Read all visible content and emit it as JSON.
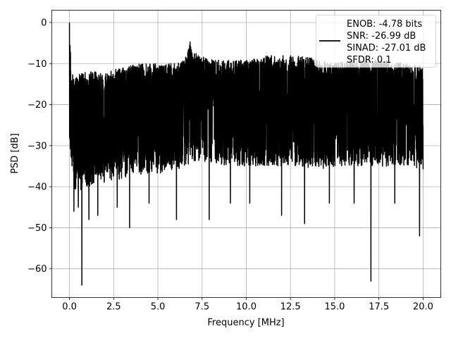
{
  "chart_data": {
    "type": "line",
    "xlabel": "Frequency [MHz]",
    "ylabel": "PSD [dB]",
    "xlim": [
      -1.0,
      21.0
    ],
    "ylim": [
      -67.0,
      3.0
    ],
    "xticks": [
      0.0,
      2.5,
      5.0,
      7.5,
      10.0,
      12.5,
      15.0,
      17.5,
      20.0
    ],
    "xtick_labels": [
      "0.0",
      "2.5",
      "5.0",
      "7.5",
      "10.0",
      "12.5",
      "15.0",
      "17.5",
      "20.0"
    ],
    "yticks": [
      0,
      -10,
      -20,
      -30,
      -40,
      -50,
      -60
    ],
    "ytick_labels": [
      "0",
      "−10",
      "−20",
      "−30",
      "−40",
      "−50",
      "−60"
    ],
    "grid": true,
    "legend_position": "top-right",
    "series": [
      {
        "color": "#000000",
        "x_range": [
          0.0,
          20.0
        ],
        "upper_envelope": {
          "x": [
            0.0,
            0.1,
            0.3,
            1.0,
            2.0,
            3.0,
            4.0,
            5.0,
            6.0,
            6.5,
            6.85,
            7.0,
            7.3,
            8.0,
            9.0,
            10.0,
            11.0,
            12.0,
            13.0,
            14.0,
            15.0,
            16.0,
            17.0,
            18.0,
            19.0,
            20.0
          ],
          "y": [
            0,
            -12,
            -13,
            -12,
            -12,
            -11,
            -10,
            -10,
            -10,
            -9,
            -4,
            -7,
            -8,
            -9,
            -9,
            -9,
            -8,
            -8,
            -8,
            -9,
            -10,
            -9,
            -9,
            -9,
            -10,
            -10
          ]
        },
        "lower_envelope": {
          "x": [
            0.0,
            0.3,
            1.0,
            2.0,
            3.0,
            4.0,
            5.0,
            6.0,
            7.0,
            8.0,
            9.0,
            10.0,
            11.0,
            12.0,
            13.0,
            14.0,
            15.0,
            16.0,
            17.0,
            18.0,
            19.0,
            20.0
          ],
          "y": [
            -30,
            -42,
            -40,
            -39,
            -38,
            -37,
            -37,
            -36,
            -34,
            -34,
            -35,
            -35,
            -35,
            -35,
            -35,
            -36,
            -35,
            -35,
            -35,
            -35,
            -35,
            -36
          ]
        },
        "dips": [
          {
            "x": 0.25,
            "y": -46
          },
          {
            "x": 0.5,
            "y": -45
          },
          {
            "x": 0.7,
            "y": -64
          },
          {
            "x": 1.1,
            "y": -48
          },
          {
            "x": 1.6,
            "y": -47
          },
          {
            "x": 2.7,
            "y": -45
          },
          {
            "x": 3.4,
            "y": -50
          },
          {
            "x": 4.5,
            "y": -44
          },
          {
            "x": 6.05,
            "y": -48
          },
          {
            "x": 7.9,
            "y": -48
          },
          {
            "x": 9.1,
            "y": -44
          },
          {
            "x": 10.2,
            "y": -44
          },
          {
            "x": 12.0,
            "y": -47
          },
          {
            "x": 13.3,
            "y": -49
          },
          {
            "x": 14.7,
            "y": -44
          },
          {
            "x": 16.1,
            "y": -44
          },
          {
            "x": 17.05,
            "y": -63
          },
          {
            "x": 18.4,
            "y": -44
          },
          {
            "x": 19.8,
            "y": -52
          }
        ]
      }
    ],
    "legend": {
      "entries": [
        "ENOB: -4.78 bits",
        "SNR: -26.99 dB",
        "SINAD: -27.01 dB",
        "SFDR: 0.1"
      ]
    }
  }
}
